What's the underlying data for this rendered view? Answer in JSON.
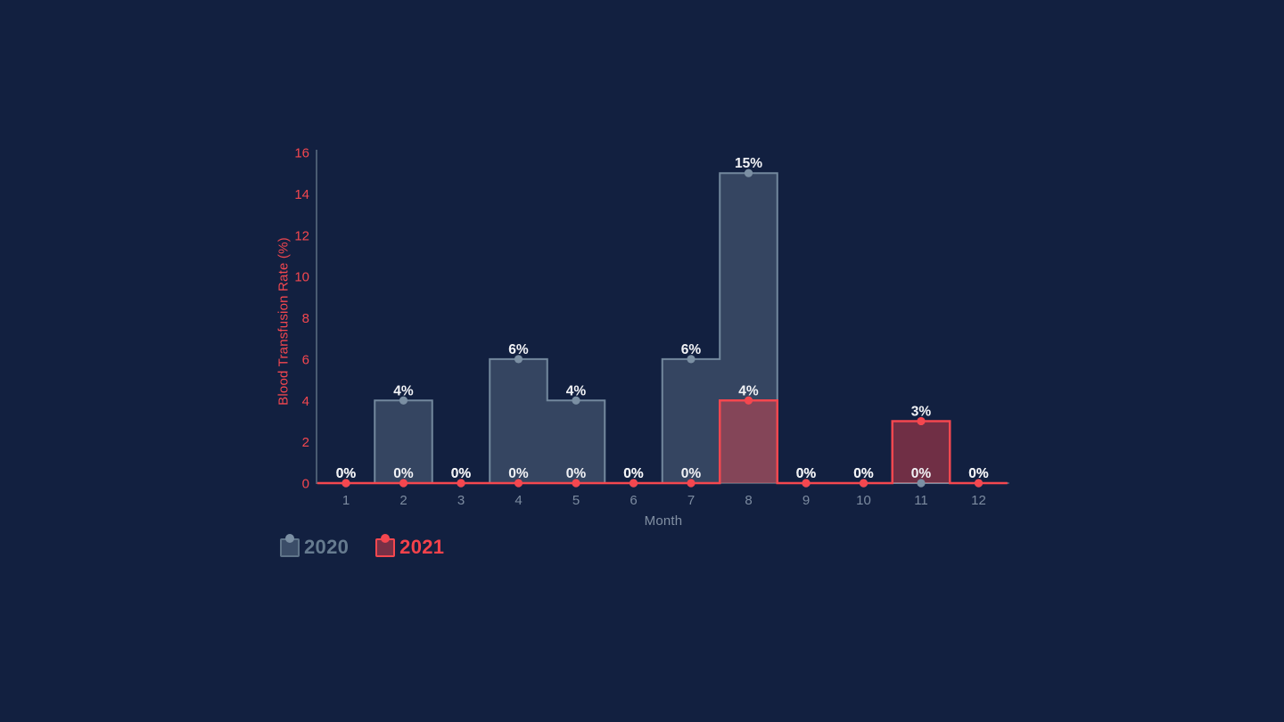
{
  "page": {
    "background": "#122040"
  },
  "chart_data": {
    "type": "bar",
    "title": "",
    "xlabel": "Month",
    "ylabel": "Blood Transfusion Rate (%)",
    "categories": [
      "1",
      "2",
      "3",
      "4",
      "5",
      "6",
      "7",
      "8",
      "9",
      "10",
      "11",
      "12"
    ],
    "series": [
      {
        "name": "2020",
        "values": [
          0,
          4,
          0,
          6,
          4,
          0,
          6,
          15,
          0,
          0,
          0,
          0
        ],
        "line_color": "#73889D",
        "fill_color": "rgba(110,132,153,0.38)",
        "marker_color": "#7B8FA3",
        "line_width": 2
      },
      {
        "name": "2021",
        "values": [
          0,
          0,
          0,
          0,
          0,
          0,
          0,
          4,
          0,
          0,
          3,
          0
        ],
        "line_color": "#F4474F",
        "fill_color": "rgba(244,69,77,0.42)",
        "marker_color": "#F4474F",
        "line_width": 2.5
      }
    ],
    "ylim": [
      0,
      16
    ],
    "ytick_step": 2,
    "yticks": [
      "0",
      "2",
      "4",
      "6",
      "8",
      "10",
      "12",
      "14",
      "16"
    ],
    "value_suffix": "%",
    "value_labels": {
      "2020": [
        "0%",
        "4%",
        "0%",
        "6%",
        "4%",
        "0%",
        "6%",
        "15%",
        "0%",
        "0%",
        "0%",
        "0%"
      ],
      "2021": [
        "0%",
        "0%",
        "0%",
        "0%",
        "0%",
        "0%",
        "0%",
        "4%",
        "0%",
        "0%",
        "3%",
        "0%"
      ]
    },
    "grid": false,
    "legend_position": "bottom-left",
    "colors": {
      "axis_line": "#4A5B72",
      "ytick_label": "#F4474F",
      "xtick_label": "#7C8BA0",
      "ylabel_color": "#F4474F",
      "xlabel_color": "#8290A3",
      "value_label": "#F2F3F6"
    }
  },
  "legend": {
    "items": [
      {
        "label": "2020",
        "text_color": "#667B8F",
        "swatch_fill": "rgba(110,132,153,0.45)",
        "swatch_border": "#5F7489",
        "dot_color": "#7B8FA3"
      },
      {
        "label": "2021",
        "text_color": "#F4424B",
        "swatch_fill": "rgba(244,69,77,0.45)",
        "swatch_border": "#F4474F",
        "dot_color": "#F4474F"
      }
    ]
  }
}
